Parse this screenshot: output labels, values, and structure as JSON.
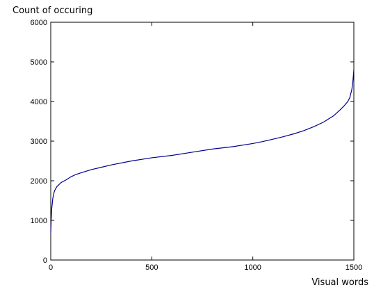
{
  "chart_data": {
    "type": "line",
    "xlabel": "Visual words",
    "ylabel": "Count of occuring",
    "xlim": [
      0,
      1500
    ],
    "ylim": [
      0,
      6000
    ],
    "x_ticks": [
      0,
      500,
      1000,
      1500
    ],
    "y_ticks": [
      0,
      1000,
      2000,
      3000,
      4000,
      5000,
      6000
    ],
    "grid": false,
    "legend": "none",
    "line_color": "#00008b",
    "series": [
      {
        "x": [
          0,
          2,
          5,
          10,
          15,
          20,
          30,
          40,
          50,
          75,
          100,
          125,
          150,
          200,
          250,
          300,
          400,
          500,
          600,
          700,
          800,
          900,
          1000,
          1050,
          1100,
          1150,
          1200,
          1250,
          1300,
          1350,
          1400,
          1430,
          1450,
          1470,
          1480,
          1490,
          1495,
          1500
        ],
        "y": [
          700,
          1000,
          1300,
          1550,
          1680,
          1760,
          1850,
          1900,
          1950,
          2020,
          2100,
          2160,
          2200,
          2280,
          2340,
          2400,
          2500,
          2580,
          2640,
          2720,
          2800,
          2860,
          2940,
          2990,
          3050,
          3110,
          3180,
          3260,
          3360,
          3480,
          3640,
          3780,
          3880,
          4000,
          4100,
          4300,
          4500,
          4800
        ]
      }
    ]
  }
}
